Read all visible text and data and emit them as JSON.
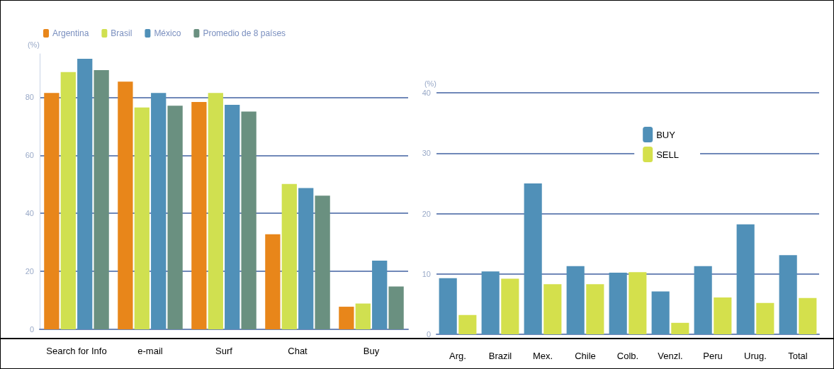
{
  "chart_data": [
    {
      "type": "bar",
      "ylabel": "(%)",
      "categories": [
        "Search for Info",
        "e-mail",
        "Surf",
        "Chat",
        "Buy"
      ],
      "series": [
        {
          "name": "Argentina",
          "color": "#e8861a",
          "values": [
            81.5,
            85.4,
            78.4,
            32.8,
            7.8
          ]
        },
        {
          "name": "Brasil",
          "color": "#d0e050",
          "values": [
            88.7,
            76.5,
            81.5,
            50.1,
            8.9
          ]
        },
        {
          "name": "México",
          "color": "#5090b8",
          "values": [
            93.3,
            81.5,
            77.4,
            48.7,
            23.7
          ]
        },
        {
          "name": "Promedio de 8 países",
          "color": "#6a9080",
          "values": [
            89.4,
            77.1,
            75.1,
            46.1,
            14.8
          ]
        }
      ],
      "ylim": [
        0,
        95
      ],
      "yticks": [
        0,
        20,
        40,
        60,
        80
      ],
      "grid": "y",
      "legend": "top left"
    },
    {
      "type": "bar",
      "ylabel": "(%)",
      "categories": [
        "Arg.",
        "Brazil",
        "Mex.",
        "Chile",
        "Colb.",
        "Venzl.",
        "Peru",
        "Urug.",
        "Total"
      ],
      "series": [
        {
          "name": "BUY",
          "color": "#5090b8",
          "values": [
            9.3,
            10.4,
            25.0,
            11.3,
            10.2,
            7.1,
            11.3,
            18.2,
            13.1
          ]
        },
        {
          "name": "SELL",
          "color": "#d4e04c",
          "values": [
            3.2,
            9.2,
            8.3,
            8.3,
            10.3,
            1.9,
            6.1,
            5.2,
            6.0
          ]
        }
      ],
      "ylim": [
        0,
        40
      ],
      "yticks": [
        0,
        10,
        20,
        30,
        40
      ],
      "grid": "y",
      "legend": "top"
    }
  ]
}
